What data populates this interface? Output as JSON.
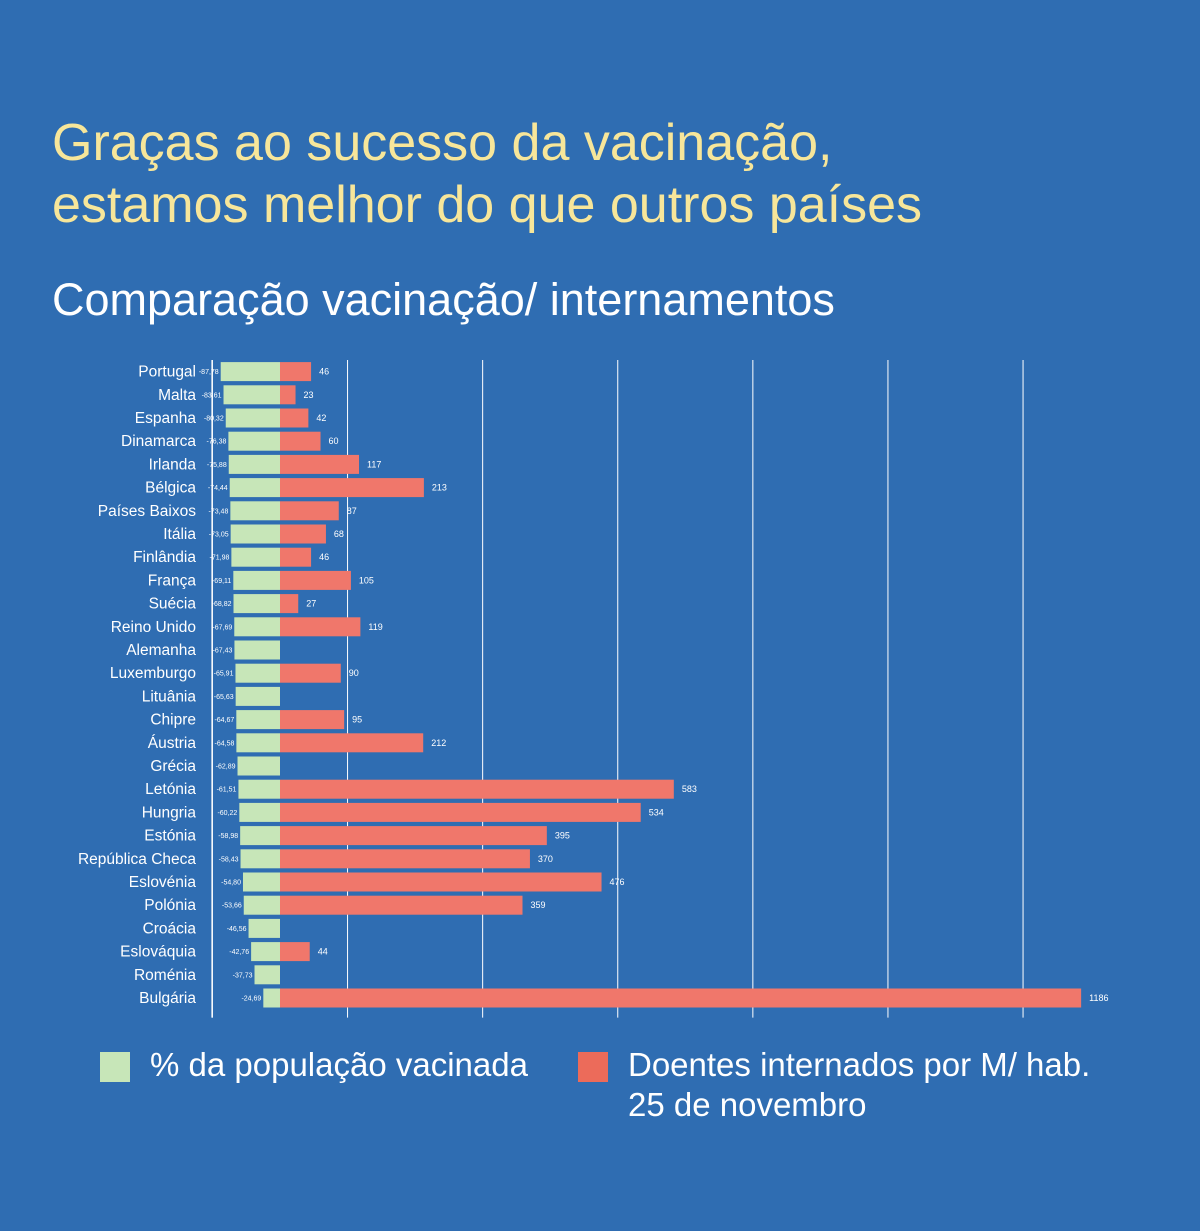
{
  "title_line1": "Graças ao sucesso da vacinação,",
  "title_line2": "estamos melhor do que outros países",
  "subtitle": "Comparação vacinação/ internamentos",
  "colors": {
    "background": "#2f6db2",
    "title": "#f7e69a",
    "vaccinated": "#c7e6b8",
    "hospitalized": "#f0776b",
    "legend_hospitalized": "#ec6b5a",
    "gridline": "#ffffff"
  },
  "legend": {
    "vaccinated_label": "% da população vacinada",
    "hospitalized_label_line1": "Doentes internados por M/ hab.",
    "hospitalized_label_line2": "25 de novembro"
  },
  "chart_data": {
    "type": "bar",
    "orientation": "horizontal",
    "categories": [
      "Portugal",
      "Malta",
      "Espanha",
      "Dinamarca",
      "Irlanda",
      "Bélgica",
      "Países Baixos",
      "Itália",
      "Finlândia",
      "França",
      "Suécia",
      "Reino Unido",
      "Alemanha",
      "Luxemburgo",
      "Lituânia",
      "Chipre",
      "Áustria",
      "Grécia",
      "Letónia",
      "Hungria",
      "Estónia",
      "República Checa",
      "Eslovénia",
      "Polónia",
      "Croácia",
      "Eslováquia",
      "Roménia",
      "Bulgária"
    ],
    "series": [
      {
        "name": "% da população vacinada",
        "values": [
          -87.78,
          -83.61,
          -80.32,
          -76.38,
          -75.88,
          -74.44,
          -73.48,
          -73.05,
          -71.98,
          -69.11,
          -68.82,
          -67.69,
          -67.43,
          -65.91,
          -65.63,
          -64.67,
          -64.58,
          -62.89,
          -61.51,
          -60.22,
          -58.98,
          -58.43,
          -54.8,
          -53.66,
          -46.56,
          -42.76,
          -37.73,
          -24.69
        ],
        "labels": [
          "-87,78",
          "-83,61",
          "-80,32",
          "-76,38",
          "-75,88",
          "-74,44",
          "-73,48",
          "-73,05",
          "-71,98",
          "-69,11",
          "-68,82",
          "-67,69",
          "-67,43",
          "-65,91",
          "-65,63",
          "-64,67",
          "-64,58",
          "-62,89",
          "-61,51",
          "-60,22",
          "-58,98",
          "-58,43",
          "-54,80",
          "-53,66",
          "-46,56",
          "-42,76",
          "-37,73",
          "-24,69"
        ]
      },
      {
        "name": "Doentes internados por M/ hab.",
        "values": [
          46,
          23,
          42,
          60,
          117,
          213,
          87,
          68,
          46,
          105,
          27,
          119,
          null,
          90,
          null,
          95,
          212,
          null,
          583,
          534,
          395,
          370,
          476,
          359,
          null,
          44,
          null,
          1186
        ],
        "labels": [
          "46",
          "23",
          "42",
          "60",
          "117",
          "213",
          "87",
          "68",
          "46",
          "105",
          "27",
          "119",
          "",
          "90",
          "",
          "95",
          "212",
          "",
          "583",
          "534",
          "395",
          "370",
          "476",
          "359",
          "",
          "44",
          "",
          "1186"
        ]
      }
    ],
    "xlim": [
      -100,
      1200
    ],
    "gridlines_at": [
      -100,
      100,
      300,
      500,
      700,
      900,
      1100
    ],
    "grid": true,
    "legend_position": "bottom"
  }
}
